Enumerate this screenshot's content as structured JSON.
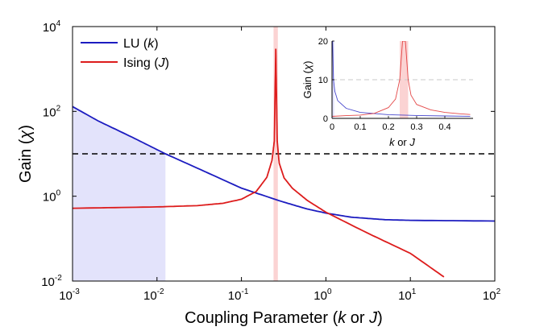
{
  "colors": {
    "lu": "#1c1cc0",
    "ising": "#dd1c1c",
    "threshold": "#000000",
    "lu_fill": "#e3e3fb",
    "ising_band": "#fbd3d3"
  },
  "chart_data": [
    {
      "type": "line",
      "x_scale": "log",
      "y_scale": "log",
      "xlim": [
        0.001,
        100
      ],
      "ylim": [
        0.01,
        10000
      ],
      "x_ticks": [
        {
          "value": 0.001,
          "base": "10",
          "exp": "-3"
        },
        {
          "value": 0.01,
          "base": "10",
          "exp": "-2"
        },
        {
          "value": 0.1,
          "base": "10",
          "exp": "-1"
        },
        {
          "value": 1,
          "base": "10",
          "exp": "0"
        },
        {
          "value": 10,
          "base": "10",
          "exp": "1"
        },
        {
          "value": 100,
          "base": "10",
          "exp": "2"
        }
      ],
      "y_ticks": [
        {
          "value": 0.01,
          "base": "10",
          "exp": "-2"
        },
        {
          "value": 1,
          "base": "10",
          "exp": "0"
        },
        {
          "value": 100,
          "base": "10",
          "exp": "2"
        },
        {
          "value": 10000,
          "base": "10",
          "exp": "4"
        }
      ],
      "xlabel": {
        "prefix": "Coupling Parameter  (",
        "k": "k",
        "or": " or ",
        "J": "J",
        "suffix": ")"
      },
      "ylabel": {
        "prefix": "Gain  (",
        "chi": "χ",
        "suffix": ")"
      },
      "legend": {
        "position": "top-left",
        "entries": [
          {
            "prefix": "LU  (",
            "var": "k",
            "suffix": ")"
          },
          {
            "prefix": "Ising  (",
            "var": "J",
            "suffix": ")"
          }
        ]
      },
      "threshold": {
        "y": 10,
        "style": "dashed"
      },
      "shaded_region": {
        "series": "LU",
        "x": [
          0.001,
          0.0126
        ]
      },
      "critical_band": {
        "series": "Ising",
        "x": [
          0.24,
          0.27
        ]
      },
      "series": [
        {
          "name": "LU (k)",
          "color": "#1c1cc0",
          "x": [
            0.001,
            0.002,
            0.005,
            0.0126,
            0.03,
            0.1,
            0.3,
            0.6,
            1,
            2,
            5,
            10,
            100
          ],
          "y": [
            130,
            60,
            25,
            10,
            4.6,
            1.55,
            0.75,
            0.5,
            0.4,
            0.32,
            0.28,
            0.27,
            0.26
          ]
        },
        {
          "name": "Ising (J)",
          "color": "#dd1c1c",
          "x": [
            0.001,
            0.01,
            0.03,
            0.06,
            0.1,
            0.15,
            0.2,
            0.23,
            0.245,
            0.255,
            0.265,
            0.28,
            0.32,
            0.4,
            0.6,
            1,
            3,
            10,
            25
          ],
          "y": [
            0.52,
            0.56,
            0.6,
            0.68,
            0.85,
            1.3,
            2.8,
            7,
            20,
            3000,
            20,
            6,
            2.7,
            1.55,
            0.8,
            0.42,
            0.14,
            0.045,
            0.0125
          ]
        }
      ]
    },
    {
      "type": "line",
      "inset": true,
      "x_scale": "linear",
      "y_scale": "linear",
      "xlim": [
        0,
        0.5
      ],
      "ylim": [
        0,
        20
      ],
      "x_ticks": [
        "0",
        "0.1",
        "0.2",
        "0.3",
        "0.4"
      ],
      "y_ticks": [
        "0",
        "10",
        "20"
      ],
      "xlabel": {
        "k": "k",
        "or": " or ",
        "J": "J"
      },
      "ylabel": {
        "prefix": "Gain  (",
        "chi": "χ",
        "suffix": ")"
      },
      "threshold": {
        "y": 10
      },
      "shaded_regions": [
        {
          "series": "LU",
          "x": [
            0,
            0.005
          ]
        },
        {
          "series": "Ising",
          "x": [
            0.24,
            0.27
          ]
        }
      ],
      "series": [
        {
          "name": "LU",
          "x": [
            0.002,
            0.005,
            0.01,
            0.02,
            0.05,
            0.1,
            0.2,
            0.3,
            0.4,
            0.49
          ],
          "y": [
            20,
            10,
            7,
            4.6,
            2.6,
            1.55,
            0.95,
            0.75,
            0.62,
            0.55
          ]
        },
        {
          "name": "Ising",
          "x": [
            0,
            0.05,
            0.1,
            0.15,
            0.2,
            0.225,
            0.24,
            0.25,
            0.255,
            0.26,
            0.27,
            0.28,
            0.3,
            0.35,
            0.4,
            0.45,
            0.49
          ],
          "y": [
            0.52,
            0.7,
            0.85,
            1.3,
            2.8,
            5,
            10,
            20,
            20,
            20,
            10,
            6,
            3.6,
            2.2,
            1.55,
            1.2,
            1.0
          ]
        }
      ]
    }
  ]
}
